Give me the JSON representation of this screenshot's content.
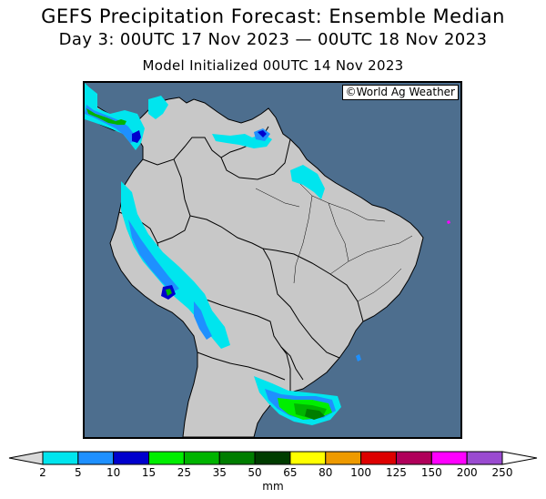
{
  "title": {
    "line1": "GEFS Precipitation Forecast: Ensemble Median",
    "line2": "Day 3: 00UTC 17 Nov 2023 — 00UTC 18 Nov 2023",
    "line3": "Model Initialized 00UTC 14 Nov 2023"
  },
  "credit": "©World Ag Weather",
  "colorbar": {
    "units": "mm",
    "ticks": [
      "2",
      "5",
      "10",
      "15",
      "25",
      "35",
      "50",
      "65",
      "80",
      "100",
      "125",
      "150",
      "200",
      "250"
    ],
    "under_color": "#d9d9d9",
    "over_color": "#ffffff",
    "colors": [
      "#00e5ee",
      "#1e90ff",
      "#0000cd",
      "#00ee00",
      "#00b400",
      "#007d00",
      "#003c00",
      "#ffff00",
      "#ee9a00",
      "#dd0000",
      "#b0005a",
      "#ff00ff",
      "#9a4bd0"
    ]
  },
  "map": {
    "ocean_color": "#4d6e8e",
    "land_color": "#c8c8c8"
  }
}
